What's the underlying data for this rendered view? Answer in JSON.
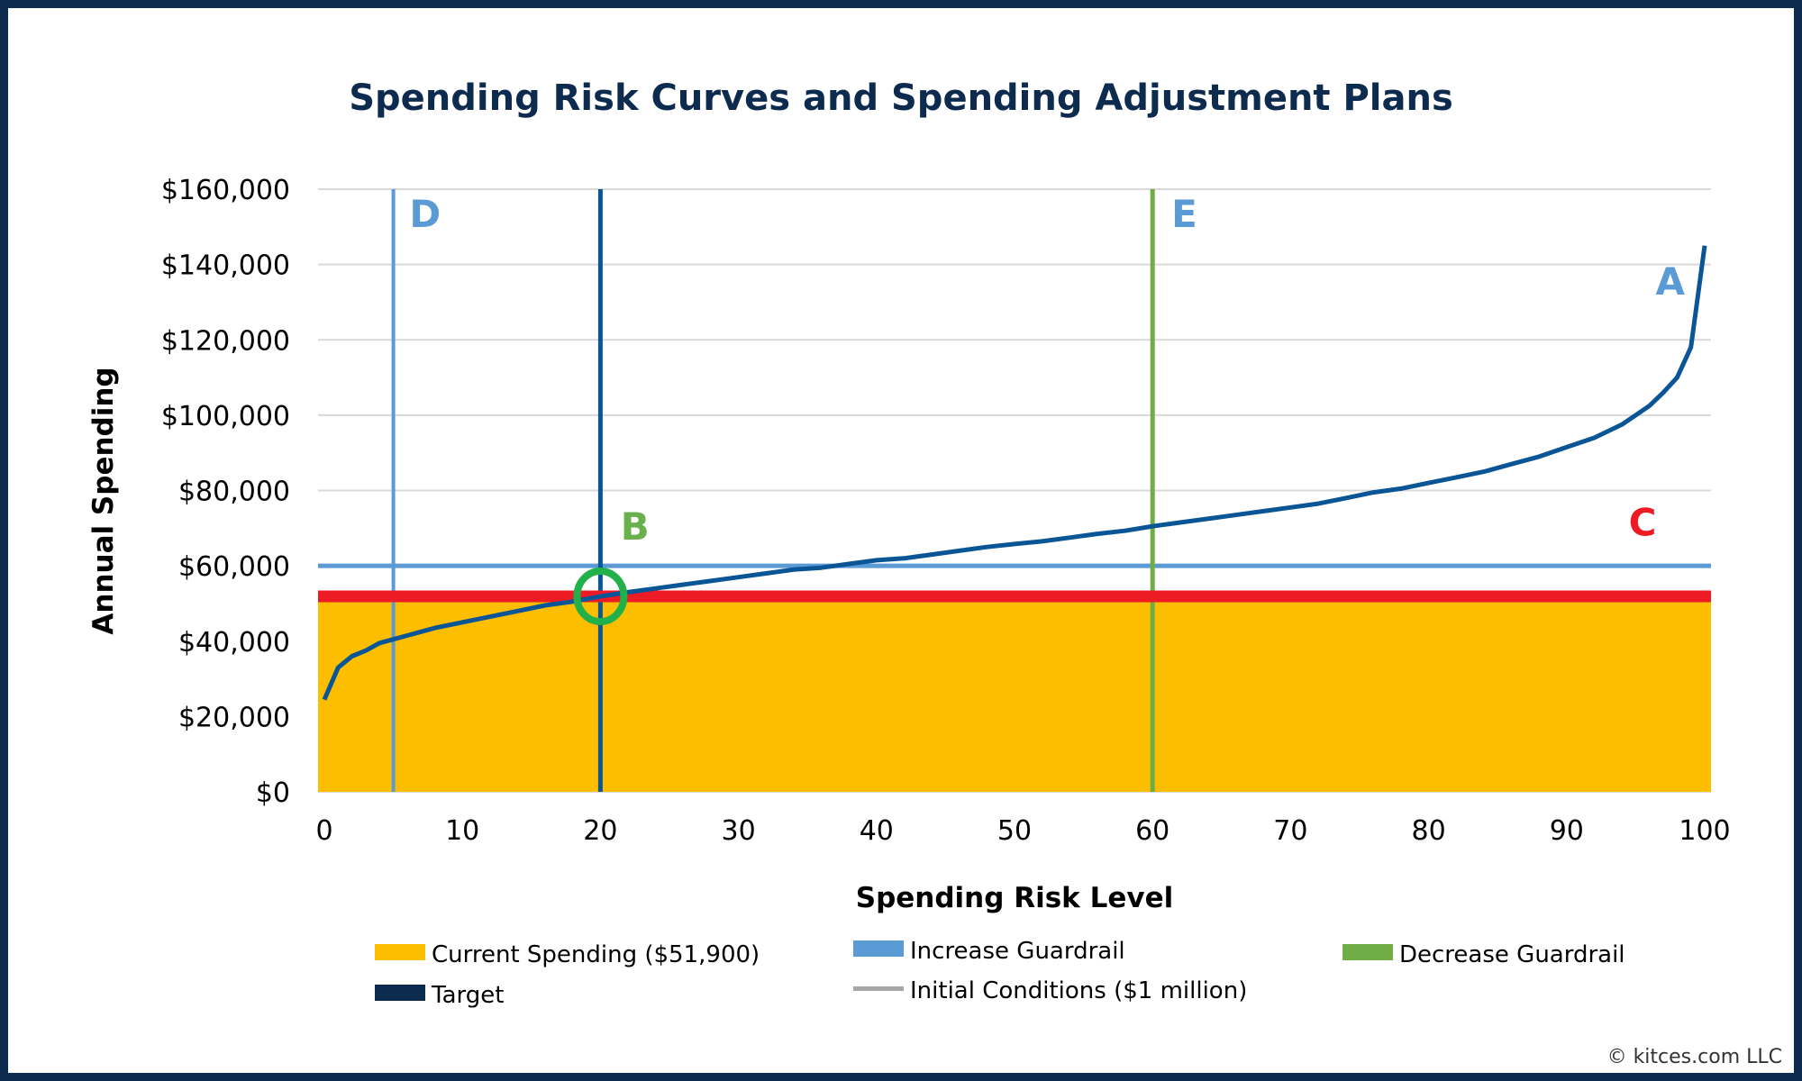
{
  "chart_data": {
    "type": "line",
    "title": "Spending Risk Curves and Spending Adjustment Plans",
    "xlabel": "Spending Risk Level",
    "ylabel": "Annual Spending",
    "xlim": [
      0,
      100
    ],
    "ylim": [
      0,
      160000
    ],
    "x_ticks": [
      "0",
      "10",
      "20",
      "30",
      "40",
      "50",
      "60",
      "70",
      "80",
      "90",
      "100"
    ],
    "y_ticks": [
      "$0",
      "$20,000",
      "$40,000",
      "$60,000",
      "$80,000",
      "$100,000",
      "$120,000",
      "$140,000",
      "$160,000"
    ],
    "grid": "horizontal",
    "series": [
      {
        "name": "Initial Conditions ($1 million)",
        "color": "#0a5596",
        "x": [
          0,
          1,
          2,
          3,
          4,
          5,
          6,
          7,
          8,
          10,
          12,
          14,
          16,
          18,
          20,
          22,
          24,
          26,
          28,
          30,
          32,
          34,
          36,
          38,
          40,
          42,
          44,
          46,
          48,
          50,
          52,
          54,
          56,
          58,
          60,
          62,
          64,
          66,
          68,
          70,
          72,
          74,
          76,
          78,
          80,
          82,
          84,
          86,
          88,
          90,
          92,
          94,
          95,
          96,
          97,
          98,
          99,
          100
        ],
        "y": [
          24500,
          33000,
          36000,
          37500,
          39500,
          40500,
          41500,
          42500,
          43500,
          45000,
          46500,
          48000,
          49500,
          50500,
          51900,
          53000,
          54000,
          55000,
          56000,
          57000,
          58000,
          59000,
          59500,
          60500,
          61500,
          62000,
          63000,
          64000,
          65000,
          65800,
          66500,
          67500,
          68500,
          69300,
          70500,
          71500,
          72500,
          73500,
          74500,
          75500,
          76500,
          78000,
          79500,
          80500,
          82000,
          83500,
          85000,
          87000,
          89000,
          91500,
          94000,
          97500,
          100000,
          102500,
          106000,
          110000,
          118000,
          145000
        ]
      }
    ],
    "current_spending": {
      "name": "Current Spending ($51,900)",
      "value": 51900,
      "color": "#fdbe00",
      "line_color": "#ed1c24"
    },
    "increase_guardrail": {
      "name": "Increase Guardrail",
      "spending": 60000,
      "risk_level": 5,
      "color": "#5b9bd5"
    },
    "decrease_guardrail": {
      "name": "Decrease Guardrail",
      "risk_level": 60,
      "color": "#70ad47"
    },
    "target": {
      "name": "Target",
      "risk_level": 20,
      "color": "#0d2b4e"
    },
    "initial_conditions_legend_color": "#a6a6a6",
    "marker_circle": {
      "x": 20,
      "y": 51900,
      "color": "#22b04b"
    },
    "annotations": [
      {
        "text": "A",
        "x": 97.5,
        "y": 132000,
        "color": "#5b9bd5"
      },
      {
        "text": "B",
        "x": 22.5,
        "y": 67000,
        "color": "#6ab04c"
      },
      {
        "text": "C",
        "x": 95.5,
        "y": 68000,
        "color": "#ed1c24"
      },
      {
        "text": "D",
        "x": 7.3,
        "y": 150000,
        "color": "#5b9bd5"
      },
      {
        "text": "E",
        "x": 62.3,
        "y": 150000,
        "color": "#5b9bd5"
      }
    ],
    "legend": [
      {
        "label": "Current Spending ($51,900)",
        "color": "#fdbe00",
        "kind": "box"
      },
      {
        "label": "Increase Guardrail",
        "color": "#5b9bd5",
        "kind": "box"
      },
      {
        "label": "Decrease Guardrail",
        "color": "#70ad47",
        "kind": "box"
      },
      {
        "label": "Target",
        "color": "#0d2b4e",
        "kind": "box"
      },
      {
        "label": "Initial Conditions ($1 million)",
        "color": "#a6a6a6",
        "kind": "line"
      }
    ],
    "legend_placement": "bottom"
  },
  "copyright": "© kitces.com LLC"
}
